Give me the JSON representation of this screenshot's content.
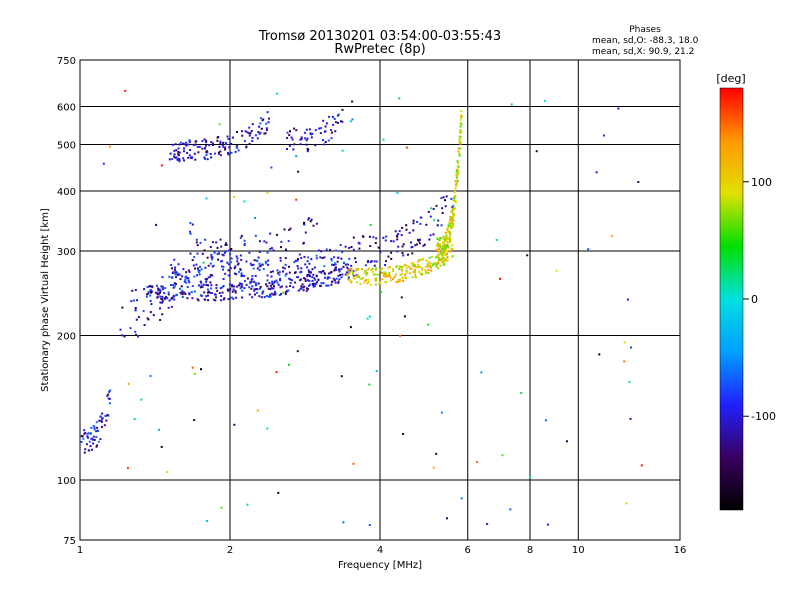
{
  "chart_data": {
    "type": "scatter",
    "title": "Tromsø 20130201 03:54:00-03:55:43",
    "subtitle": "RwPretec (8p)",
    "xlabel": "Frequency [MHz]",
    "ylabel": "Stationary phase Virtual Height [km]",
    "x_scale": "log",
    "y_scale": "log",
    "xlim": [
      1,
      16
    ],
    "ylim": [
      75,
      750
    ],
    "x_ticks": [
      1,
      2,
      4,
      6,
      8,
      10,
      16
    ],
    "x_tick_labels": [
      "1",
      "2",
      "4",
      "6",
      "8",
      "10",
      "16"
    ],
    "y_ticks": [
      75,
      100,
      200,
      300,
      400,
      500,
      600,
      750
    ],
    "y_tick_labels": [
      "75",
      "100",
      "200",
      "300",
      "400",
      "500",
      "600",
      "750"
    ],
    "grid": true,
    "stats": {
      "title": "Phases",
      "line_o": "mean, sd,O: -88.3, 18.0",
      "line_x": "mean, sd,X:  90.9, 21.2"
    },
    "colorbar": {
      "label": "[deg]",
      "range": [
        -180,
        180
      ],
      "ticks": [
        100,
        0,
        -100
      ],
      "tick_labels": [
        "100",
        "0",
        "-100"
      ],
      "stops": [
        "#000000",
        "#3a0060",
        "#2020ff",
        "#00a0ff",
        "#00e0e0",
        "#00e000",
        "#e0e000",
        "#ff9900",
        "#ff0000"
      ]
    },
    "trace_groups": [
      {
        "x_range": [
          1.0,
          1.15
        ],
        "h_base": 120,
        "h_top": 150,
        "phase": -100,
        "n": 70,
        "jitter": 0.06
      },
      {
        "x_range": [
          1.2,
          1.7
        ],
        "h_base": 220,
        "h_top": 330,
        "phase": -110,
        "n": 60,
        "jitter": 0.12
      },
      {
        "x_range": [
          1.5,
          2.4
        ],
        "h_base": 485,
        "h_top": 560,
        "phase": -105,
        "n": 140,
        "jitter": 0.05
      },
      {
        "x_range": [
          2.6,
          3.4
        ],
        "h_base": 510,
        "h_top": 590,
        "phase": -110,
        "n": 60,
        "jitter": 0.06
      },
      {
        "x_range": [
          1.35,
          3.6
        ],
        "h_base": 245,
        "h_top": 275,
        "phase": -105,
        "n": 320,
        "jitter": 0.04
      },
      {
        "x_range": [
          1.5,
          3.5
        ],
        "h_base": 270,
        "h_top": 300,
        "phase": -95,
        "n": 180,
        "jitter": 0.05
      },
      {
        "x_range": [
          1.7,
          3.0
        ],
        "h_base": 300,
        "h_top": 340,
        "phase": -110,
        "n": 80,
        "jitter": 0.06
      },
      {
        "x_range": [
          3.4,
          5.6
        ],
        "h_base": 265,
        "h_top": 300,
        "phase": 100,
        "n": 220,
        "jitter": 0.04
      },
      {
        "x_range": [
          5.2,
          5.85
        ],
        "h_base": 300,
        "h_top": 600,
        "phase": 95,
        "n": 200,
        "jitter": 0.06
      },
      {
        "x_range": [
          3.5,
          5.6
        ],
        "h_base": 300,
        "h_top": 400,
        "phase": -120,
        "n": 90,
        "jitter": 0.08
      },
      {
        "x_range": [
          1.1,
          14.0
        ],
        "h_base": 80,
        "h_top": 650,
        "phase": 0,
        "n": 110,
        "jitter": 1.0
      }
    ]
  }
}
